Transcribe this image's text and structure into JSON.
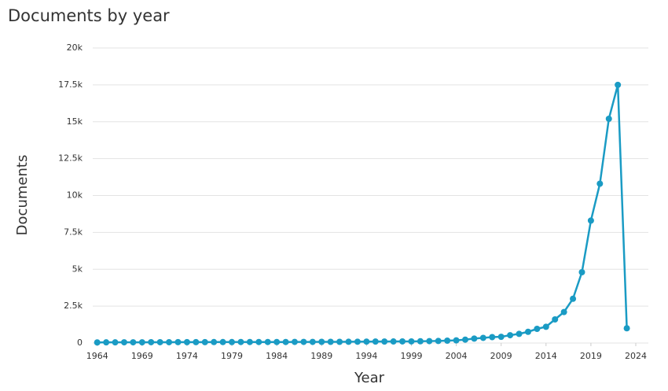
{
  "chart_data": {
    "type": "line",
    "title": "Documents by year",
    "x_label": "Year",
    "y_label": "Documents",
    "x": [
      1964,
      1965,
      1966,
      1967,
      1968,
      1969,
      1970,
      1971,
      1972,
      1973,
      1974,
      1975,
      1976,
      1977,
      1978,
      1979,
      1980,
      1981,
      1982,
      1983,
      1984,
      1985,
      1986,
      1987,
      1988,
      1989,
      1990,
      1991,
      1992,
      1993,
      1994,
      1995,
      1996,
      1997,
      1998,
      1999,
      2000,
      2001,
      2002,
      2003,
      2004,
      2005,
      2006,
      2007,
      2008,
      2009,
      2010,
      2011,
      2012,
      2013,
      2014,
      2015,
      2016,
      2017,
      2018,
      2019,
      2020,
      2021,
      2022,
      2023
    ],
    "series": [
      {
        "name": "Documents",
        "color": "#1a9bc4",
        "values": [
          40,
          45,
          45,
          50,
          50,
          50,
          55,
          55,
          55,
          60,
          60,
          60,
          60,
          65,
          65,
          65,
          70,
          70,
          70,
          70,
          70,
          70,
          75,
          75,
          75,
          80,
          80,
          80,
          85,
          90,
          95,
          100,
          100,
          105,
          110,
          110,
          120,
          130,
          140,
          160,
          180,
          230,
          300,
          350,
          400,
          420,
          530,
          620,
          760,
          960,
          1100,
          1600,
          2100,
          3000,
          4800,
          8300,
          10800,
          15200,
          17500,
          1000
        ]
      }
    ],
    "xlim": [
      1963.5,
      2025.4
    ],
    "xticks": [
      1964,
      1969,
      1974,
      1979,
      1984,
      1989,
      1994,
      1999,
      2004,
      2009,
      2014,
      2019,
      2024
    ],
    "ylim": [
      0,
      20000
    ],
    "yticks": [
      0,
      {
        "value": 2500,
        "label": "2.5k"
      },
      {
        "value": 5000,
        "label": "5k"
      },
      {
        "value": 7500,
        "label": "7.5k"
      },
      {
        "value": 10000,
        "label": "10k"
      },
      {
        "value": 12500,
        "label": "12.5k"
      },
      {
        "value": 15000,
        "label": "15k"
      },
      {
        "value": 17500,
        "label": "17.5k"
      },
      {
        "value": 20000,
        "label": "20k"
      }
    ],
    "grid": true
  }
}
